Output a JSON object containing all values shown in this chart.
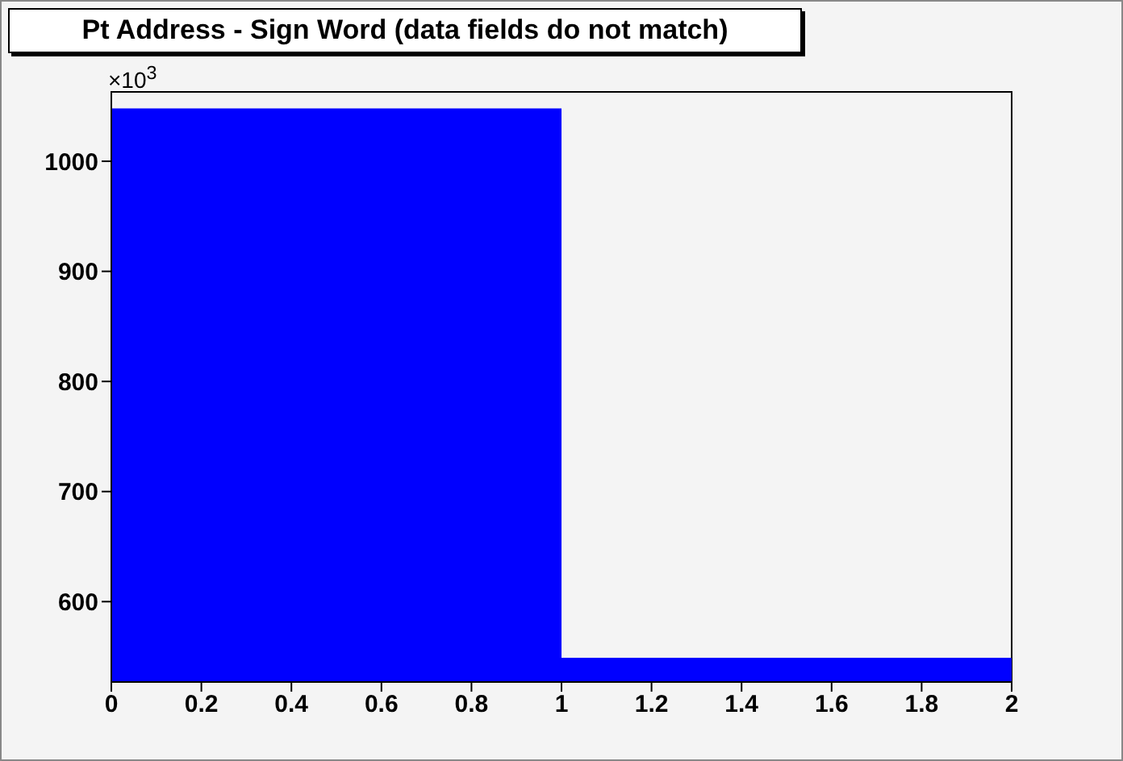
{
  "chart_data": {
    "type": "histogram",
    "title": "Pt Address - Sign Word (data fields do not match)",
    "annotations": [
      "×10$^{3}$"
    ],
    "bins": [
      0,
      1,
      2
    ],
    "values": [
      1048,
      549
    ],
    "color": "#0000ff",
    "xlim": [
      0,
      2
    ],
    "xticks": [
      0,
      0.2,
      0.4,
      0.6,
      0.8,
      1,
      1.2,
      1.4,
      1.6,
      1.8,
      2
    ],
    "ylim": [
      527,
      1063
    ],
    "yticks": [
      600,
      700,
      800,
      900,
      1000
    ]
  }
}
